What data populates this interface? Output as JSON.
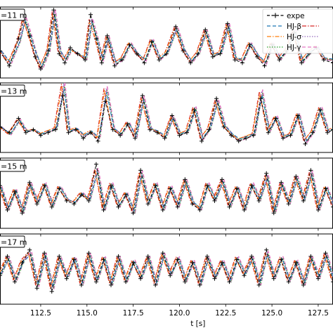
{
  "chart_data": {
    "type": "line",
    "xlabel": "t [s]",
    "xlim": [
      110.3,
      128.3
    ],
    "xticks": [
      "112.5",
      "115.0",
      "117.5",
      "120.0",
      "122.5",
      "125.0",
      "127.5"
    ],
    "legend_position": "top-right of first panel",
    "series": [
      {
        "name": "expe",
        "color": "#000000",
        "style": "dashed-plus"
      },
      {
        "name": "HJ-β",
        "color": "#1f77b4",
        "style": "dashed"
      },
      {
        "name": "HJ-σ",
        "color": "#ff7f0e",
        "style": "dashdot"
      },
      {
        "name": "HJ-γ",
        "color": "#2ca02c",
        "style": "dotted"
      },
      {
        "name": "",
        "color": "#d62728",
        "style": "dashdot"
      },
      {
        "name": "",
        "color": "#9467bd",
        "style": "dotted"
      },
      {
        "name": "",
        "color": "#e377c2",
        "style": "dashed"
      }
    ],
    "panels": [
      {
        "label": "=11 m",
        "ylim": [
          -1.1,
          1.25
        ],
        "x": [
          110.3,
          110.8,
          111.3,
          111.6,
          111.9,
          112.2,
          112.5,
          112.9,
          113.2,
          113.5,
          113.8,
          114.1,
          114.5,
          114.9,
          115.2,
          115.5,
          115.8,
          116.1,
          116.5,
          116.9,
          117.3,
          117.7,
          118.1,
          118.5,
          118.9,
          119.3,
          119.8,
          120.2,
          120.6,
          121.0,
          121.4,
          121.8,
          122.2,
          122.6,
          123.0,
          123.4,
          123.8,
          124.2,
          124.6,
          125.0,
          125.4,
          125.8,
          126.2,
          126.6,
          127.0,
          127.4,
          127.8,
          128.3
        ],
        "expe": [
          -0.2,
          -0.7,
          0.2,
          0.9,
          0.3,
          -0.4,
          -0.8,
          -0.2,
          1.15,
          -0.3,
          -0.6,
          -0.1,
          -0.3,
          -0.5,
          1.0,
          0.2,
          -0.6,
          0.3,
          -0.7,
          -0.5,
          0.0,
          -0.3,
          -0.6,
          0.1,
          -0.5,
          -0.3,
          0.6,
          -0.2,
          -0.6,
          -0.3,
          0.5,
          -0.4,
          -0.3,
          0.7,
          -0.5,
          -0.6,
          0.0,
          -0.4,
          -0.7,
          0.0,
          -0.5,
          -0.2,
          0.4,
          -0.6,
          -0.3,
          -0.1,
          -0.5,
          -0.6
        ],
        "model": [
          -0.2,
          -0.6,
          0.1,
          0.85,
          0.3,
          -0.3,
          -0.75,
          -0.2,
          1.05,
          -0.2,
          -0.5,
          -0.15,
          -0.3,
          -0.45,
          0.8,
          0.2,
          -0.5,
          0.25,
          -0.6,
          -0.45,
          0.05,
          -0.3,
          -0.5,
          0.15,
          -0.45,
          -0.25,
          0.55,
          -0.15,
          -0.55,
          -0.25,
          0.45,
          -0.35,
          -0.25,
          0.65,
          -0.45,
          -0.5,
          0.05,
          -0.35,
          -0.6,
          0.05,
          -0.45,
          -0.15,
          0.45,
          -0.55,
          -0.25,
          -0.05,
          -0.45,
          -0.5
        ]
      },
      {
        "label": "=13 m",
        "ylim": [
          -1.0,
          1.45
        ],
        "x": [
          110.3,
          110.8,
          111.3,
          111.7,
          112.1,
          112.5,
          112.9,
          113.3,
          113.7,
          114.0,
          114.4,
          114.8,
          115.2,
          115.6,
          116.0,
          116.4,
          116.8,
          117.2,
          117.6,
          118.0,
          118.4,
          118.8,
          119.2,
          119.6,
          120.0,
          120.4,
          120.8,
          121.2,
          121.6,
          122.0,
          122.4,
          122.8,
          123.2,
          123.6,
          124.0,
          124.4,
          124.8,
          125.2,
          125.6,
          126.0,
          126.4,
          126.8,
          127.2,
          127.6,
          128.0,
          128.3
        ],
        "expe": [
          -0.1,
          -0.3,
          0.2,
          -0.3,
          -0.2,
          -0.4,
          -0.3,
          -0.2,
          1.0,
          -0.3,
          -0.2,
          -0.5,
          -0.3,
          -0.6,
          0.8,
          -0.2,
          -0.4,
          0.0,
          -0.5,
          1.0,
          -0.2,
          -0.3,
          -0.5,
          0.3,
          -0.4,
          -0.3,
          0.5,
          -0.6,
          -0.2,
          0.9,
          -0.1,
          -0.4,
          -0.6,
          -0.5,
          -0.4,
          0.9,
          -0.3,
          0.2,
          -0.5,
          -0.4,
          0.3,
          -0.7,
          -0.3,
          0.5,
          -0.3,
          -0.2
        ],
        "model": [
          -0.1,
          -0.35,
          0.15,
          -0.25,
          -0.2,
          -0.35,
          -0.25,
          -0.15,
          1.35,
          -0.25,
          -0.15,
          -0.4,
          -0.25,
          -0.5,
          1.2,
          -0.15,
          -0.35,
          0.05,
          -0.45,
          0.9,
          -0.15,
          -0.25,
          -0.45,
          0.25,
          -0.35,
          -0.25,
          0.55,
          -0.5,
          -0.15,
          0.8,
          -0.05,
          -0.35,
          -0.55,
          -0.45,
          -0.35,
          1.1,
          -0.25,
          0.25,
          -0.45,
          -0.35,
          0.35,
          -0.6,
          -0.25,
          0.55,
          -0.25,
          -0.15
        ]
      },
      {
        "label": "=15 m",
        "ylim": [
          -1.1,
          1.2
        ],
        "x": [
          110.3,
          110.7,
          111.1,
          111.5,
          111.9,
          112.3,
          112.7,
          113.1,
          113.5,
          113.9,
          114.3,
          114.7,
          115.1,
          115.5,
          115.9,
          116.3,
          116.7,
          117.1,
          117.5,
          117.9,
          118.3,
          118.7,
          119.1,
          119.5,
          119.9,
          120.3,
          120.7,
          121.1,
          121.5,
          121.9,
          122.3,
          122.7,
          123.1,
          123.5,
          123.9,
          124.3,
          124.7,
          125.1,
          125.5,
          125.9,
          126.3,
          126.7,
          127.1,
          127.5,
          127.9,
          128.3
        ],
        "expe": [
          0.3,
          -0.5,
          0.1,
          -0.6,
          0.4,
          -0.3,
          0.3,
          -0.4,
          0.2,
          -0.2,
          -0.3,
          0.0,
          -0.2,
          1.0,
          -0.5,
          0.3,
          -0.4,
          0.0,
          -0.6,
          0.8,
          -0.3,
          0.3,
          -0.5,
          0.2,
          -0.4,
          0.5,
          -0.3,
          -0.5,
          0.3,
          -0.2,
          0.5,
          -0.4,
          0.2,
          -0.5,
          0.3,
          -0.2,
          0.7,
          -0.6,
          0.4,
          -0.3,
          0.6,
          -0.2,
          0.8,
          -0.5,
          0.2,
          -0.4
        ],
        "model": [
          0.25,
          -0.45,
          0.15,
          -0.55,
          0.35,
          -0.25,
          0.35,
          -0.35,
          0.25,
          -0.15,
          -0.25,
          0.05,
          -0.15,
          0.8,
          -0.45,
          0.35,
          -0.35,
          0.05,
          -0.55,
          0.7,
          -0.25,
          0.35,
          -0.45,
          0.25,
          -0.35,
          0.45,
          -0.25,
          -0.45,
          0.35,
          -0.15,
          0.45,
          -0.35,
          0.25,
          -0.45,
          0.35,
          -0.15,
          0.6,
          -0.55,
          0.35,
          -0.25,
          0.55,
          -0.15,
          0.7,
          -0.45,
          0.25,
          -0.35
        ]
      },
      {
        "label": "=17 m",
        "ylim": [
          -1.1,
          1.1
        ],
        "x": [
          110.3,
          110.7,
          111.1,
          111.5,
          111.9,
          112.3,
          112.7,
          113.1,
          113.5,
          113.9,
          114.3,
          114.7,
          115.1,
          115.5,
          115.9,
          116.3,
          116.7,
          117.1,
          117.5,
          117.9,
          118.3,
          118.7,
          119.1,
          119.5,
          119.9,
          120.3,
          120.7,
          121.1,
          121.5,
          121.9,
          122.3,
          122.7,
          123.1,
          123.5,
          123.9,
          124.3,
          124.7,
          125.1,
          125.5,
          125.9,
          126.3,
          126.7,
          127.1,
          127.5,
          127.9,
          128.3
        ],
        "expe": [
          -0.2,
          0.4,
          -0.4,
          0.2,
          0.6,
          -0.6,
          0.5,
          -0.7,
          0.4,
          -0.3,
          0.3,
          -0.5,
          0.5,
          -0.4,
          0.3,
          -0.5,
          0.4,
          -0.4,
          0.2,
          -0.3,
          0.4,
          -0.5,
          0.5,
          -0.2,
          0.3,
          -0.4,
          0.2,
          -0.5,
          0.4,
          -0.3,
          0.2,
          -0.4,
          0.3,
          -0.2,
          0.4,
          -0.5,
          0.6,
          -0.3,
          0.3,
          -0.4,
          0.2,
          -0.5,
          0.4,
          -0.3,
          0.5,
          -0.4
        ],
        "model": [
          -0.15,
          0.35,
          -0.35,
          0.25,
          0.5,
          -0.5,
          0.45,
          -0.6,
          0.35,
          -0.25,
          0.35,
          -0.45,
          0.45,
          -0.35,
          0.35,
          -0.45,
          0.35,
          -0.35,
          0.25,
          -0.25,
          0.35,
          -0.45,
          0.45,
          -0.15,
          0.35,
          -0.35,
          0.25,
          -0.45,
          0.35,
          -0.25,
          0.25,
          -0.35,
          0.35,
          -0.15,
          0.35,
          -0.45,
          0.5,
          -0.25,
          0.35,
          -0.35,
          0.25,
          -0.45,
          0.35,
          -0.25,
          0.45,
          -0.35
        ]
      }
    ]
  }
}
